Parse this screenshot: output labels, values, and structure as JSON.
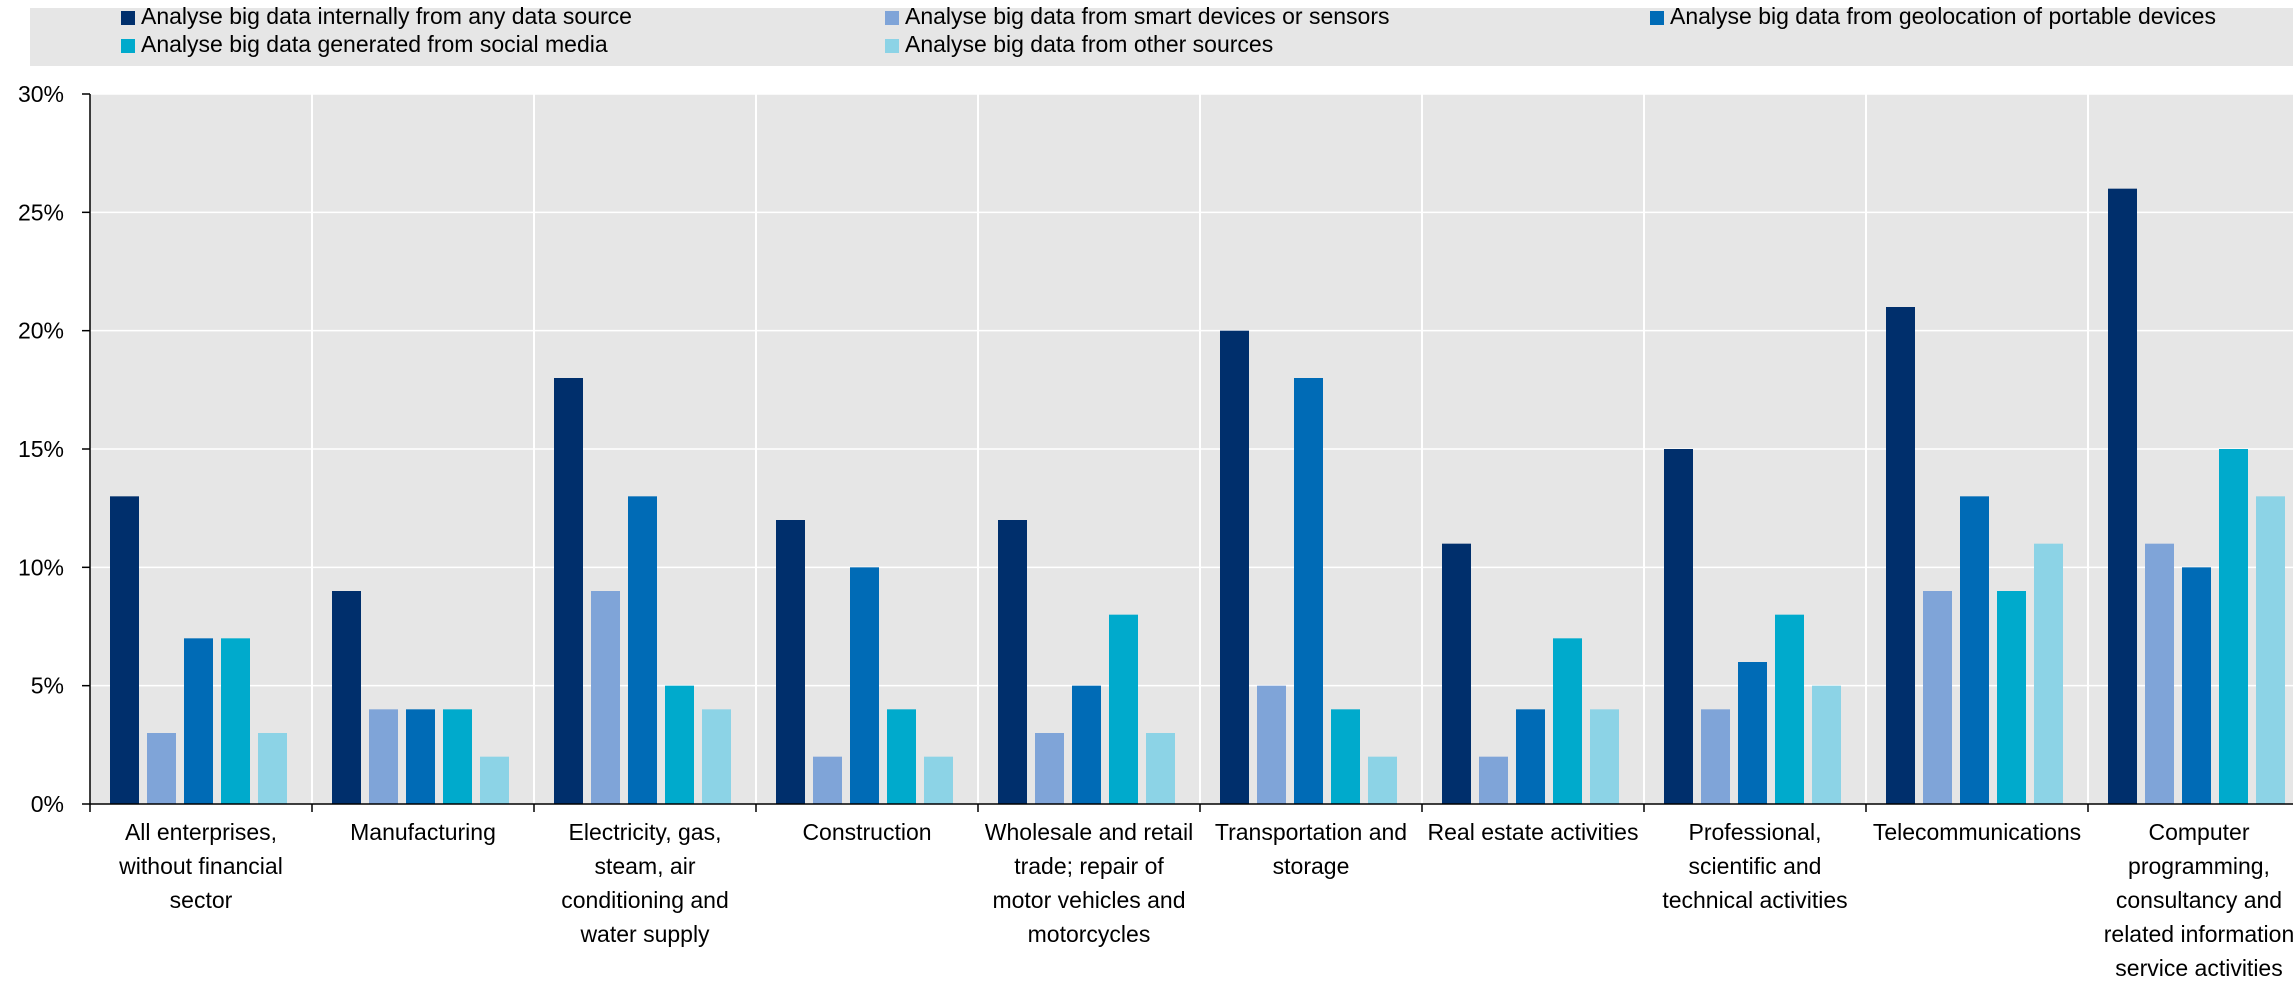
{
  "chart_data": {
    "type": "bar",
    "title": "",
    "xlabel": "",
    "ylabel": "",
    "ylim": [
      0,
      30
    ],
    "yticks": [
      0,
      5,
      10,
      15,
      20,
      25,
      30
    ],
    "ytick_labels": [
      "0%",
      "5%",
      "10%",
      "15%",
      "20%",
      "25%",
      "30%"
    ],
    "grid": true,
    "legend_position": "top",
    "categories": [
      "All enterprises, without financial sector",
      "Manufacturing",
      "Electricity, gas, steam, air conditioning and water supply",
      "Construction",
      "Wholesale and retail trade; repair of motor vehicles and motorcycles",
      "Transportation and storage",
      "Real estate activities",
      "Professional, scientific and technical activities",
      "Telecommunications",
      "Computer programming, consultancy and related information service activities"
    ],
    "category_label_lines": [
      [
        "All enterprises,",
        "without financial",
        "sector"
      ],
      [
        "Manufacturing"
      ],
      [
        "Electricity, gas,",
        "steam, air",
        "conditioning and",
        "water supply"
      ],
      [
        "Construction"
      ],
      [
        "Wholesale and retail",
        "trade; repair of",
        "motor vehicles and",
        "motorcycles"
      ],
      [
        "Transportation and",
        "storage"
      ],
      [
        "Real estate activities"
      ],
      [
        "Professional,",
        "scientific and",
        "technical activities"
      ],
      [
        "Telecommunications"
      ],
      [
        "Computer",
        "programming,",
        "consultancy and",
        "related information",
        "service activities"
      ]
    ],
    "series": [
      {
        "name": "Analyse big data internally from any data source",
        "color": "#002f6c",
        "values": [
          13,
          9,
          18,
          12,
          12,
          20,
          11,
          15,
          21,
          26
        ]
      },
      {
        "name": "Analyse big data from smart devices or sensors",
        "color": "#7fa4d8",
        "values": [
          3,
          4,
          9,
          2,
          3,
          5,
          2,
          4,
          9,
          11
        ]
      },
      {
        "name": "Analyse big data from geolocation of portable devices",
        "color": "#006bb6",
        "values": [
          7,
          4,
          13,
          10,
          5,
          18,
          4,
          6,
          13,
          10
        ]
      },
      {
        "name": "Analyse big data generated from social media",
        "color": "#00aacc",
        "values": [
          7,
          4,
          5,
          4,
          8,
          4,
          7,
          8,
          9,
          15
        ]
      },
      {
        "name": "Analyse big data from other sources",
        "color": "#8cd3e6",
        "values": [
          3,
          2,
          4,
          2,
          3,
          2,
          4,
          5,
          11,
          13
        ]
      }
    ]
  }
}
